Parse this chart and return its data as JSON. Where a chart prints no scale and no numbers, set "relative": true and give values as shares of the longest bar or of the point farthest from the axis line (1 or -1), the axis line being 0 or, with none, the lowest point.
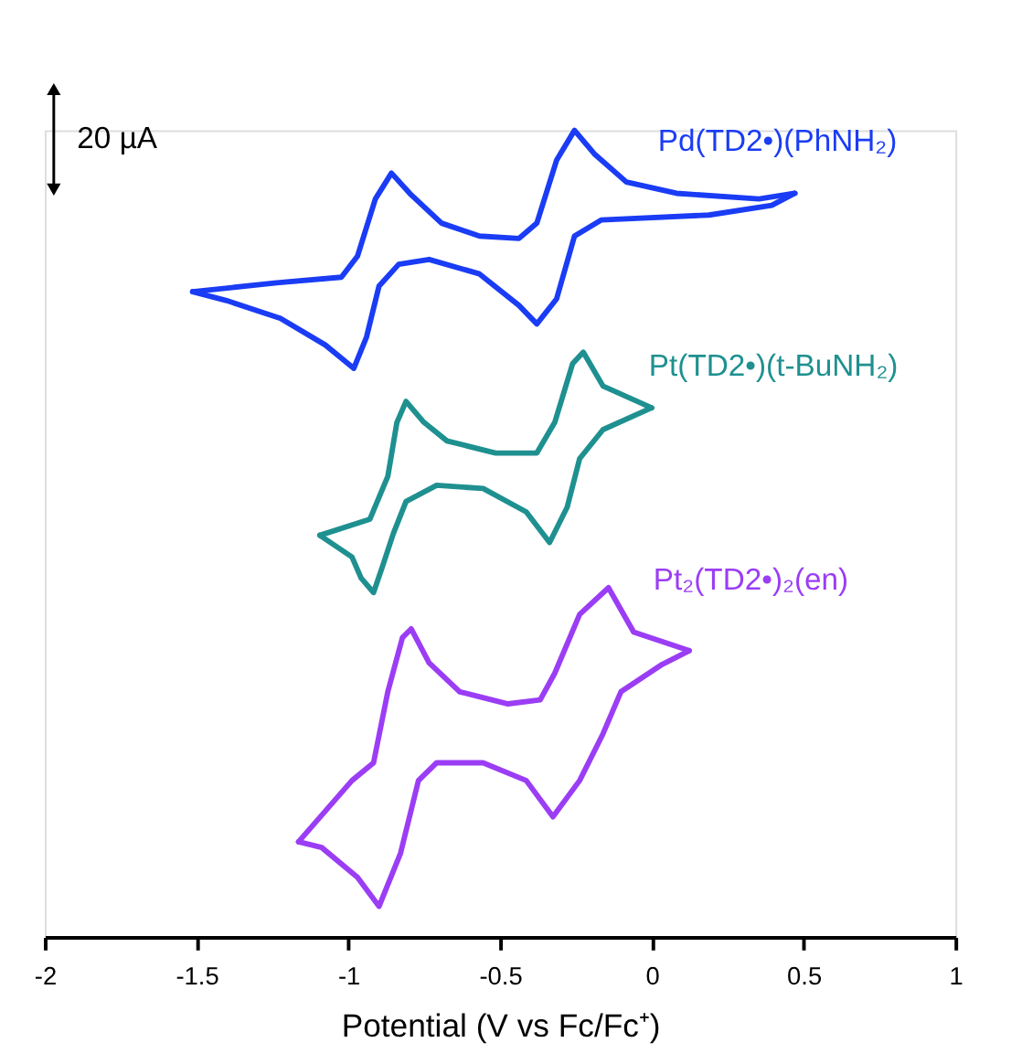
{
  "chart_data": {
    "type": "line",
    "relative": true,
    "xlabel": "Potential (V vs Fc/Fc⁺)",
    "xlim": [
      -2,
      1
    ],
    "xticks": [
      -2,
      -1.5,
      -1,
      -0.5,
      0,
      0.5,
      1
    ],
    "grid": false,
    "marker": "none",
    "line_style": "solid",
    "annotations": [
      "20 µA"
    ],
    "series": [
      {
        "name": "Pd(TD2•)(PhNH₂)",
        "color": "#1a3cf5",
        "x": [
          -1.513,
          -1.236,
          -1.023,
          -0.97,
          -0.911,
          -0.858,
          -0.793,
          -0.693,
          -0.568,
          -0.438,
          -0.379,
          -0.314,
          -0.255,
          -0.19,
          -0.084,
          0.081,
          0.353,
          0.471
        ],
        "values": [
          0.8,
          0.811,
          0.818,
          0.844,
          0.915,
          0.947,
          0.92,
          0.885,
          0.869,
          0.866,
          0.885,
          0.963,
          1.0,
          0.971,
          0.936,
          0.922,
          0.915,
          0.922
        ]
      },
      {
        "color": "#1a3cf5",
        "x": [
          0.471,
          0.395,
          0.188,
          -0.166,
          -0.255,
          -0.314,
          -0.379,
          -0.438,
          -0.568,
          -0.734,
          -0.834,
          -0.899,
          -0.94,
          -0.982,
          -1.076,
          -1.224,
          -1.401,
          -1.513
        ],
        "values": [
          0.922,
          0.907,
          0.895,
          0.889,
          0.869,
          0.791,
          0.76,
          0.783,
          0.822,
          0.84,
          0.834,
          0.807,
          0.744,
          0.705,
          0.734,
          0.767,
          0.789,
          0.8
        ]
      },
      {
        "name": "Pt(TD2•)(t-BuNH₂)",
        "color": "#1f9090",
        "x": [
          -1.094,
          -0.929,
          -0.87,
          -0.84,
          -0.81,
          -0.751,
          -0.675,
          -0.515,
          -0.379,
          -0.32,
          -0.261,
          -0.226,
          -0.161,
          -0.001
        ],
        "values": [
          0.498,
          0.518,
          0.571,
          0.638,
          0.664,
          0.638,
          0.615,
          0.6,
          0.6,
          0.638,
          0.711,
          0.725,
          0.683,
          0.656
        ]
      },
      {
        "color": "#1f9090",
        "x": [
          -0.001,
          -0.161,
          -0.238,
          -0.279,
          -0.337,
          -0.414,
          -0.556,
          -0.709,
          -0.81,
          -0.852,
          -0.887,
          -0.917,
          -0.958,
          -0.988,
          -1.094
        ],
        "values": [
          0.656,
          0.629,
          0.593,
          0.533,
          0.489,
          0.527,
          0.556,
          0.56,
          0.54,
          0.5,
          0.46,
          0.427,
          0.445,
          0.471,
          0.498
        ]
      },
      {
        "name": "Pt₂(TD2•)₂(en)",
        "color": "#9b3df5",
        "x": [
          -1.164,
          -0.988,
          -0.917,
          -0.87,
          -0.822,
          -0.793,
          -0.734,
          -0.633,
          -0.474,
          -0.368,
          -0.32,
          -0.238,
          -0.143,
          -0.06,
          0.123
        ],
        "values": [
          0.118,
          0.194,
          0.216,
          0.304,
          0.371,
          0.382,
          0.34,
          0.304,
          0.289,
          0.294,
          0.327,
          0.4,
          0.433,
          0.378,
          0.355
        ]
      },
      {
        "color": "#9b3df5",
        "x": [
          0.123,
          0.034,
          -0.102,
          -0.161,
          -0.238,
          -0.326,
          -0.414,
          -0.556,
          -0.709,
          -0.769,
          -0.828,
          -0.899,
          -0.97,
          -1.088,
          -1.164
        ],
        "values": [
          0.355,
          0.338,
          0.304,
          0.252,
          0.194,
          0.149,
          0.194,
          0.216,
          0.216,
          0.194,
          0.104,
          0.038,
          0.074,
          0.111,
          0.118
        ]
      }
    ]
  }
}
